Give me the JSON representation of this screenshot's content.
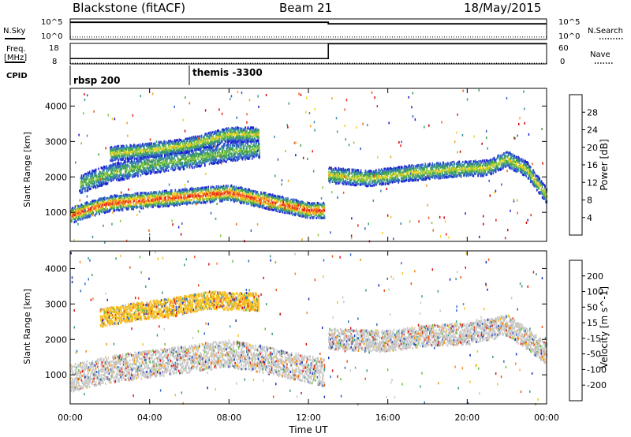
{
  "header": {
    "station": "Blackstone (fitACF)",
    "beam": "Beam 21",
    "date": "18/May/2015"
  },
  "side_labels": {
    "nsky": "N.Sky",
    "nsearch": "N.Search",
    "freq_line1": "Freq.",
    "freq_line2": "[MHz]",
    "nave": "Nave",
    "cpid": "CPID",
    "nsky_top": "10^5",
    "nsky_bot": "10^0",
    "nsearch_top": "10^5",
    "nsearch_bot": "10^0",
    "freq_top": "18",
    "freq_bot": "8",
    "nave_top": "60",
    "nave_bot": "0"
  },
  "cpid_labels": [
    {
      "text": "rbsp 200",
      "start_hour": 0
    },
    {
      "text": "themis -3300",
      "start_hour": 6
    }
  ],
  "xaxis": {
    "label": "Time UT",
    "ticks": [
      "00:00",
      "04:00",
      "08:00",
      "12:00",
      "16:00",
      "20:00",
      "00:00"
    ]
  },
  "yaxis": {
    "label": "Slant Range [km]",
    "ticks": [
      "1000",
      "2000",
      "3000",
      "4000"
    ]
  },
  "power_bar": {
    "label": "Power [dB]",
    "ticks": [
      "4",
      "8",
      "12",
      "16",
      "20",
      "24",
      "28"
    ],
    "colors": [
      "#1f1fd8",
      "#2f5ec8",
      "#3a8fa0",
      "#3fa050",
      "#8cc83c",
      "#f0d020",
      "#f5a020",
      "#f06018",
      "#e82018",
      "#d00000"
    ]
  },
  "velocity_bar": {
    "label": "Velocity [m s^-1]",
    "ticks": [
      "200",
      "100",
      "50",
      "15",
      "-15",
      "-50",
      "-100",
      "-200"
    ],
    "colors": [
      "#1830c0",
      "#2c6ac8",
      "#3a9a80",
      "#64c040",
      "#c8c8c8",
      "#f5c020",
      "#f58a18",
      "#f05018",
      "#e01010"
    ]
  },
  "chart_data": [
    {
      "type": "line",
      "title": "N.Sky / N.Search",
      "x_range_hours": [
        0,
        24
      ],
      "series": [
        {
          "name": "N.Sky",
          "x": [
            0,
            13,
            13,
            24
          ],
          "y": [
            4.2,
            4.2,
            3.8,
            3.8
          ]
        },
        {
          "name": "N.Search",
          "x": [
            0,
            24
          ],
          "y": [
            0.6,
            0.6
          ]
        }
      ]
    },
    {
      "type": "line",
      "title": "Freq. [MHz] / Nave",
      "x_range_hours": [
        0,
        24
      ],
      "series": [
        {
          "name": "Freq.",
          "x": [
            0,
            13,
            13,
            24
          ],
          "y": [
            10.6,
            10.6,
            17.8,
            17.8
          ]
        },
        {
          "name": "Nave",
          "x": [
            0,
            24
          ],
          "y": [
            0,
            0
          ]
        }
      ]
    },
    {
      "type": "heatmap",
      "title": "Power [dB]",
      "x_range_hours": [
        0,
        24
      ],
      "ylim": [
        180,
        4500
      ],
      "bands": [
        {
          "center": [
            [
              0,
              900
            ],
            [
              1,
              1100
            ],
            [
              2,
              1250
            ],
            [
              4,
              1350
            ],
            [
              6,
              1450
            ],
            [
              8,
              1550
            ],
            [
              10,
              1300
            ],
            [
              12,
              1050
            ],
            [
              12.8,
              1050
            ]
          ],
          "width": 220,
          "level": 8
        },
        {
          "center": [
            [
              0.5,
              1800
            ],
            [
              2,
              2100
            ],
            [
              4,
              2350
            ],
            [
              6,
              2500
            ],
            [
              8,
              2700
            ],
            [
              9.5,
              2800
            ]
          ],
          "width": 260,
          "level": 4
        },
        {
          "center": [
            [
              2,
              2650
            ],
            [
              4,
              2750
            ],
            [
              6,
              2900
            ],
            [
              8,
              3200
            ],
            [
              9.5,
              3200
            ]
          ],
          "width": 200,
          "level": 5
        },
        {
          "center": [
            [
              13,
              2050
            ],
            [
              15,
              1950
            ],
            [
              17,
              2100
            ],
            [
              19,
              2200
            ],
            [
              21,
              2250
            ],
            [
              22,
              2500
            ],
            [
              23,
              2200
            ],
            [
              24,
              1450
            ]
          ],
          "width": 220,
          "level": 5
        }
      ]
    },
    {
      "type": "heatmap",
      "title": "Velocity [m s^-1]",
      "x_range_hours": [
        0,
        24
      ],
      "ylim": [
        180,
        4500
      ],
      "bands": [
        {
          "center": [
            [
              0,
              900
            ],
            [
              2,
              1150
            ],
            [
              4,
              1300
            ],
            [
              6,
              1450
            ],
            [
              8,
              1600
            ],
            [
              10,
              1400
            ],
            [
              12.8,
              1050
            ]
          ],
          "width": 380,
          "level": 4
        },
        {
          "center": [
            [
              1.5,
              2600
            ],
            [
              3,
              2750
            ],
            [
              5,
              2900
            ],
            [
              7,
              3100
            ],
            [
              9.5,
              3050
            ]
          ],
          "width": 250,
          "level": 5
        },
        {
          "center": [
            [
              13,
              2000
            ],
            [
              16,
              1950
            ],
            [
              18,
              2100
            ],
            [
              20,
              2150
            ],
            [
              22,
              2400
            ],
            [
              24,
              1600
            ]
          ],
          "width": 300,
          "level": 4
        }
      ]
    }
  ]
}
